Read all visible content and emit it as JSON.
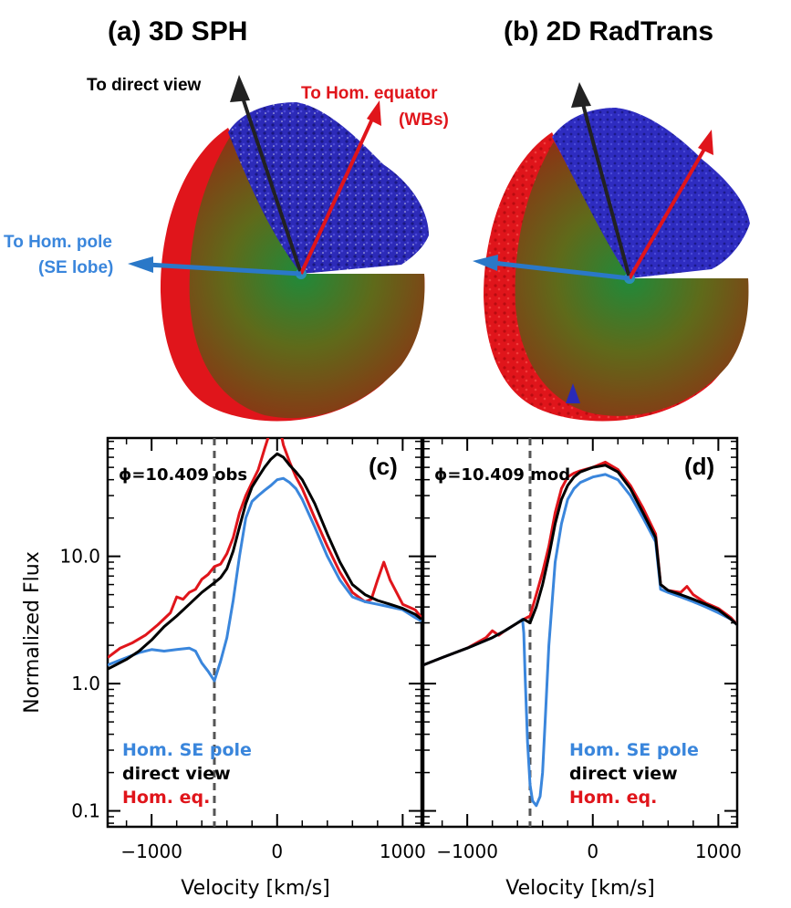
{
  "panels": {
    "a": {
      "title": "(a) 3D SPH",
      "label_direct": "To direct view",
      "label_equator_1": "To Hom. equator",
      "label_equator_2": "(WBs)",
      "label_pole_1": "To Hom. pole",
      "label_pole_2": "(SE lobe)"
    },
    "b": {
      "title": "(b) 2D RadTrans"
    }
  },
  "colors": {
    "pole": "#3a86dc",
    "direct": "#000000",
    "equator": "#e0151b",
    "dashed": "#555555",
    "shell_red": "#e0151b",
    "cap_blue": "#2a2ab8"
  },
  "chart_data": [
    {
      "type": "line",
      "panel_label": "(c)",
      "annotation": "ϕ=10.409 obs",
      "xlabel": "Velocity [km/s]",
      "ylabel": "Normalized Flux",
      "xlim": [
        -1350,
        1150
      ],
      "ylim": [
        0.075,
        85
      ],
      "yscale": "log",
      "xticks": [
        -1000,
        0,
        1000
      ],
      "xtick_labels": [
        "−1000",
        "0",
        "1000"
      ],
      "yticks": [
        0.1,
        1.0,
        10.0
      ],
      "ytick_labels": [
        "0.1",
        "1.0",
        "10.0"
      ],
      "vline_x": -500,
      "legend": [
        "Hom. SE pole",
        "direct view",
        "Hom. eq."
      ],
      "series": [
        {
          "name": "Hom. SE pole",
          "color": "#3a86dc",
          "x": [
            -1350,
            -1200,
            -1100,
            -1000,
            -900,
            -800,
            -700,
            -650,
            -600,
            -550,
            -500,
            -450,
            -400,
            -350,
            -300,
            -250,
            -200,
            -150,
            -100,
            -50,
            0,
            50,
            100,
            150,
            200,
            300,
            400,
            500,
            600,
            700,
            800,
            900,
            1000,
            1100,
            1150
          ],
          "y": [
            1.4,
            1.6,
            1.75,
            1.85,
            1.8,
            1.85,
            1.9,
            1.8,
            1.45,
            1.25,
            1.05,
            1.5,
            2.3,
            4.5,
            10,
            20,
            27,
            30,
            33,
            36,
            40,
            41,
            38,
            34,
            28,
            17,
            10,
            6.5,
            4.8,
            4.4,
            4.2,
            4.0,
            3.8,
            3.3,
            3.1
          ]
        },
        {
          "name": "direct view",
          "color": "#000000",
          "x": [
            -1350,
            -1200,
            -1100,
            -1000,
            -900,
            -800,
            -700,
            -600,
            -500,
            -450,
            -400,
            -350,
            -300,
            -250,
            -200,
            -150,
            -100,
            -50,
            0,
            50,
            100,
            150,
            200,
            300,
            400,
            500,
            600,
            700,
            800,
            900,
            1000,
            1100,
            1150
          ],
          "y": [
            1.3,
            1.55,
            1.8,
            2.2,
            2.8,
            3.4,
            4.2,
            5.2,
            6.2,
            6.8,
            8,
            11,
            17,
            26,
            35,
            42,
            50,
            58,
            64,
            60,
            52,
            46,
            40,
            26,
            15,
            9,
            6,
            5,
            4.5,
            4.2,
            3.9,
            3.5,
            3.2
          ]
        },
        {
          "name": "Hom. eq.",
          "color": "#e0151b",
          "x": [
            -1350,
            -1250,
            -1150,
            -1050,
            -950,
            -850,
            -800,
            -750,
            -700,
            -650,
            -600,
            -550,
            -500,
            -450,
            -400,
            -350,
            -300,
            -250,
            -200,
            -150,
            -100,
            -50,
            0,
            50,
            100,
            150,
            200,
            300,
            400,
            500,
            600,
            700,
            750,
            800,
            850,
            900,
            1000,
            1100,
            1150
          ],
          "y": [
            1.6,
            1.9,
            2.1,
            2.4,
            2.9,
            3.6,
            4.8,
            4.6,
            5.2,
            5.5,
            6.6,
            7.2,
            8.3,
            8.7,
            10.5,
            14,
            22,
            30,
            38,
            48,
            70,
            100,
            130,
            75,
            55,
            42,
            34,
            20,
            12,
            7.5,
            5.2,
            4.4,
            4.6,
            6.5,
            9,
            6.5,
            4.2,
            3.8,
            3.3
          ]
        }
      ]
    },
    {
      "type": "line",
      "panel_label": "(d)",
      "annotation": "ϕ=10.409 mod",
      "xlabel": "Velocity [km/s]",
      "ylabel": "",
      "xlim": [
        -1350,
        1150
      ],
      "ylim": [
        0.075,
        85
      ],
      "yscale": "log",
      "xticks": [
        -1000,
        0,
        1000
      ],
      "xtick_labels": [
        "−1000",
        "0",
        "1000"
      ],
      "yticks": [
        0.1,
        1.0,
        10.0
      ],
      "ytick_labels": [
        "",
        "",
        ""
      ],
      "vline_x": -500,
      "legend": [
        "Hom. SE pole",
        "direct view",
        "Hom. eq."
      ],
      "series": [
        {
          "name": "Hom. SE pole",
          "color": "#3a86dc",
          "x": [
            -1350,
            -1200,
            -1000,
            -800,
            -700,
            -600,
            -560,
            -550,
            -540,
            -520,
            -500,
            -480,
            -450,
            -420,
            -400,
            -380,
            -350,
            -300,
            -250,
            -200,
            -150,
            -100,
            0,
            100,
            200,
            300,
            400,
            500,
            540,
            600,
            700,
            800,
            900,
            1000,
            1100,
            1150
          ],
          "y": [
            1.4,
            1.6,
            1.9,
            2.3,
            2.6,
            3.0,
            3.2,
            2.5,
            1.2,
            0.35,
            0.16,
            0.12,
            0.11,
            0.13,
            0.2,
            0.5,
            2,
            9,
            18,
            28,
            34,
            38,
            42,
            44,
            40,
            30,
            20,
            13,
            5.5,
            5.2,
            4.8,
            4.4,
            4.0,
            3.6,
            3.2,
            2.9
          ]
        },
        {
          "name": "direct view",
          "color": "#000000",
          "x": [
            -1350,
            -1200,
            -1000,
            -800,
            -700,
            -600,
            -550,
            -500,
            -450,
            -400,
            -350,
            -300,
            -250,
            -200,
            -150,
            -100,
            0,
            100,
            200,
            300,
            400,
            500,
            540,
            600,
            700,
            800,
            900,
            1000,
            1100,
            1150
          ],
          "y": [
            1.4,
            1.6,
            1.9,
            2.3,
            2.6,
            3.0,
            3.2,
            3.0,
            4.0,
            6.0,
            10,
            18,
            28,
            36,
            42,
            46,
            50,
            52,
            46,
            34,
            22,
            14,
            6,
            5.4,
            5.0,
            4.6,
            4.2,
            3.8,
            3.2,
            2.9
          ]
        },
        {
          "name": "Hom. eq.",
          "color": "#e0151b",
          "x": [
            -1350,
            -1200,
            -1000,
            -850,
            -800,
            -750,
            -700,
            -600,
            -550,
            -500,
            -450,
            -400,
            -350,
            -300,
            -250,
            -200,
            -150,
            -100,
            0,
            100,
            200,
            300,
            400,
            500,
            540,
            600,
            700,
            750,
            800,
            900,
            1000,
            1100,
            1150
          ],
          "y": [
            1.4,
            1.6,
            1.9,
            2.3,
            2.6,
            2.4,
            2.6,
            3.0,
            3.2,
            3.4,
            5,
            7.5,
            12,
            22,
            34,
            42,
            45,
            47,
            50,
            55,
            48,
            36,
            24,
            15,
            6,
            5.4,
            5.2,
            5.8,
            5.0,
            4.3,
            3.9,
            3.3,
            2.9
          ]
        }
      ]
    }
  ]
}
